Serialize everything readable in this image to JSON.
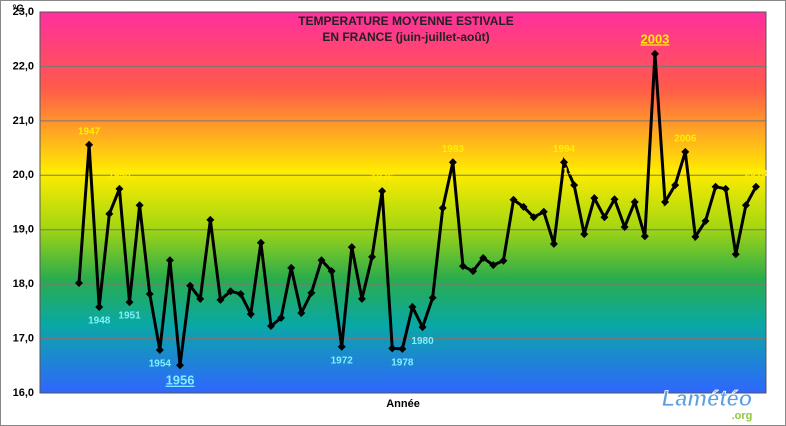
{
  "chart_data": {
    "type": "line",
    "title": "TEMPERATURE MOYENNE ESTIVALE",
    "subtitle": "EN FRANCE (juin-juillet-août)",
    "x_label": "Année",
    "y_label": "°C",
    "logo": "Lamétéo",
    "logo_sub": ".org",
    "categories": [
      null,
      "1947",
      "1948",
      null,
      "1950",
      "1951",
      null,
      null,
      "1954",
      null,
      "1956",
      null,
      null,
      null,
      null,
      null,
      null,
      null,
      null,
      null,
      null,
      null,
      null,
      null,
      null,
      null,
      "1972",
      null,
      null,
      null,
      "1976",
      null,
      "1978",
      null,
      "1980",
      null,
      null,
      "1983",
      null,
      null,
      null,
      null,
      null,
      null,
      null,
      null,
      null,
      null,
      "1994",
      "1995",
      null,
      null,
      null,
      null,
      null,
      null,
      null,
      "2003",
      null,
      null,
      "2006",
      null,
      null,
      null,
      null,
      null,
      null,
      "2013"
    ],
    "series": [
      {
        "color": "#000000",
        "values": [
          18.02,
          20.56,
          17.58,
          19.29,
          19.75,
          17.67,
          19.45,
          17.82,
          16.79,
          18.44,
          16.51,
          17.97,
          17.73,
          19.18,
          17.71,
          17.87,
          17.82,
          17.45,
          18.76,
          17.23,
          17.38,
          18.3,
          17.47,
          17.84,
          18.44,
          18.24,
          16.85,
          18.68,
          17.73,
          18.5,
          19.71,
          16.82,
          16.81,
          17.58,
          17.21,
          17.75,
          19.4,
          20.24,
          18.33,
          18.24,
          18.48,
          18.35,
          18.43,
          19.55,
          19.42,
          19.23,
          19.33,
          18.74,
          20.24,
          19.82,
          18.92,
          19.58,
          19.23,
          19.56,
          19.05,
          19.51,
          18.88,
          22.23,
          19.51,
          19.82,
          20.43,
          18.87,
          19.16,
          19.79,
          19.75,
          18.55,
          19.45,
          19.79
        ]
      }
    ],
    "ylim": [
      16,
      23
    ],
    "yticks": [
      {
        "value": 16,
        "label": "16,0"
      },
      {
        "value": 17,
        "label": "17,0"
      },
      {
        "value": 18,
        "label": "18,0"
      },
      {
        "value": 19,
        "label": "19,0"
      },
      {
        "value": 20,
        "label": "20,0"
      },
      {
        "value": 21,
        "label": "21,0"
      },
      {
        "value": 22,
        "label": "22,0"
      },
      {
        "value": 23,
        "label": "23,0"
      }
    ],
    "grid": true
  }
}
